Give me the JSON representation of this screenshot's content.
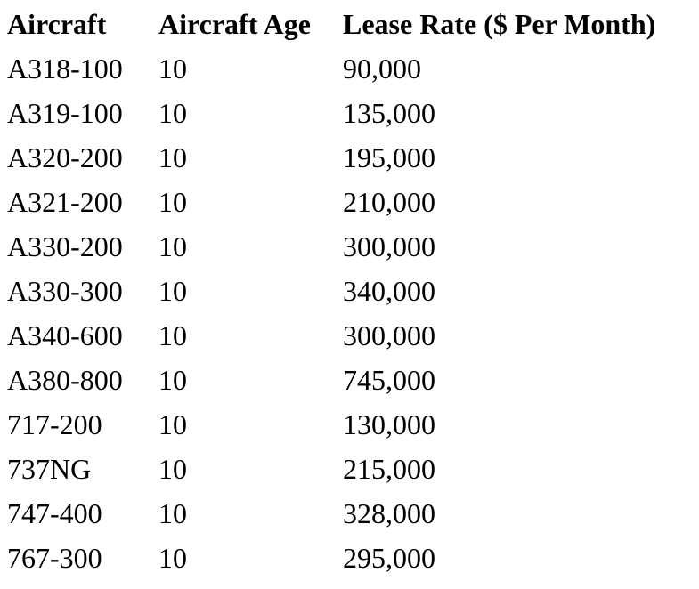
{
  "colors": {
    "background": "#ffffff",
    "text": "#000000"
  },
  "table": {
    "columns": [
      "Aircraft",
      "Aircraft Age",
      "Lease Rate ($ Per Month)"
    ],
    "rows": [
      {
        "aircraft": "A318-100",
        "age": "10",
        "lease_rate": "90,000"
      },
      {
        "aircraft": "A319-100",
        "age": "10",
        "lease_rate": "135,000"
      },
      {
        "aircraft": "A320-200",
        "age": "10",
        "lease_rate": "195,000"
      },
      {
        "aircraft": "A321-200",
        "age": "10",
        "lease_rate": "210,000"
      },
      {
        "aircraft": "A330-200",
        "age": "10",
        "lease_rate": "300,000"
      },
      {
        "aircraft": "A330-300",
        "age": "10",
        "lease_rate": "340,000"
      },
      {
        "aircraft": "A340-600",
        "age": "10",
        "lease_rate": "300,000"
      },
      {
        "aircraft": "A380-800",
        "age": "10",
        "lease_rate": "745,000"
      },
      {
        "aircraft": "717-200",
        "age": "10",
        "lease_rate": "130,000"
      },
      {
        "aircraft": "737NG",
        "age": "10",
        "lease_rate": "215,000"
      },
      {
        "aircraft": "747-400",
        "age": "10",
        "lease_rate": "328,000"
      },
      {
        "aircraft": "767-300",
        "age": "10",
        "lease_rate": "295,000"
      }
    ]
  }
}
